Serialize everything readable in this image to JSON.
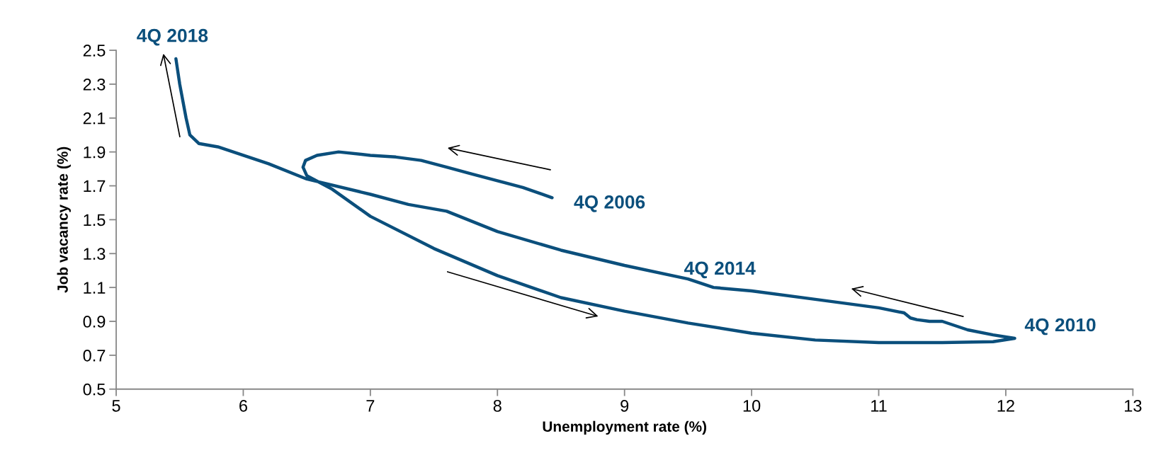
{
  "chart_data": {
    "type": "line",
    "xlabel": "Unemployment rate (%)",
    "ylabel": "Job vacancy rate (%)",
    "series": [
      {
        "color": "#0b4f7c",
        "x": [
          8.43,
          8.2,
          8.0,
          7.8,
          7.6,
          7.4,
          7.2,
          7.0,
          6.75,
          6.58,
          6.49,
          6.47,
          6.5,
          6.6,
          6.7,
          7.0,
          7.5,
          8.0,
          8.5,
          9.0,
          9.5,
          10.0,
          10.5,
          11.0,
          11.5,
          11.9,
          12.07,
          11.9,
          11.7,
          11.5,
          11.4,
          11.3,
          11.25,
          11.2,
          11.0,
          10.5,
          10.0,
          9.7,
          9.5,
          9.0,
          8.5,
          8.0,
          7.6,
          7.3,
          7.0,
          6.5,
          6.2,
          6.0,
          5.8,
          5.65,
          5.58,
          5.55,
          5.5,
          5.47
        ],
        "values": [
          1.63,
          1.69,
          1.73,
          1.77,
          1.81,
          1.85,
          1.87,
          1.88,
          1.9,
          1.88,
          1.85,
          1.81,
          1.76,
          1.72,
          1.68,
          1.52,
          1.33,
          1.17,
          1.04,
          0.96,
          0.89,
          0.83,
          0.79,
          0.775,
          0.775,
          0.78,
          0.8,
          0.82,
          0.85,
          0.9,
          0.9,
          0.91,
          0.92,
          0.95,
          0.98,
          1.03,
          1.08,
          1.1,
          1.15,
          1.23,
          1.32,
          1.43,
          1.55,
          1.59,
          1.65,
          1.74,
          1.83,
          1.88,
          1.93,
          1.95,
          2.0,
          2.1,
          2.3,
          2.45
        ]
      }
    ],
    "xlim": [
      5,
      13
    ],
    "xticks": [
      5,
      6,
      7,
      8,
      9,
      10,
      11,
      12,
      13
    ],
    "ylim": [
      0.5,
      2.5
    ],
    "yticks": [
      0.5,
      0.7,
      0.9,
      1.1,
      1.3,
      1.5,
      1.7,
      1.9,
      2.1,
      2.3,
      2.5
    ],
    "grid": false,
    "legend": false,
    "marker": "none",
    "line_style": "solid",
    "annotations": [
      {
        "text": "4Q 2018",
        "x": 5.47,
        "y": 2.45
      },
      {
        "text": "4Q 2006",
        "x": 8.43,
        "y": 1.63
      },
      {
        "text": "4Q 2014",
        "x": 9.7,
        "y": 1.1
      },
      {
        "text": "4Q 2010",
        "x": 12.07,
        "y": 0.8
      }
    ]
  }
}
